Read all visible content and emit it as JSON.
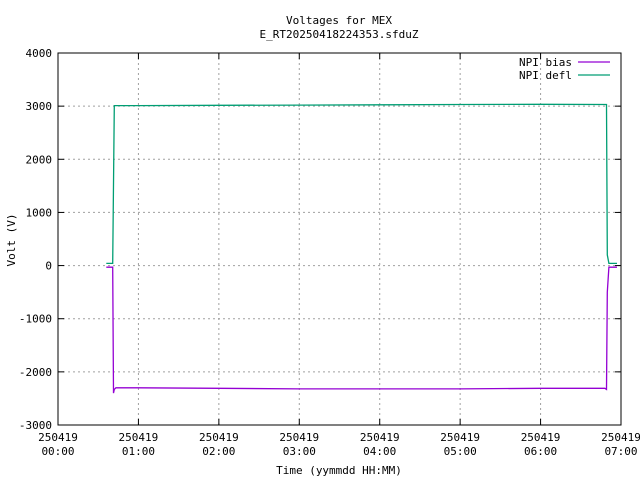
{
  "chart_data": {
    "type": "line",
    "title": "Voltages for MEX",
    "subtitle": "E_RT20250418224353.sfduZ",
    "xlabel": "Time (yymmdd HH:MM)",
    "ylabel": "Volt (V)",
    "xlim": [
      0,
      7
    ],
    "ylim": [
      -3000,
      4000
    ],
    "grid": true,
    "legend_position": "top-right",
    "y_ticks": [
      {
        "value": -3000,
        "label": "-3000"
      },
      {
        "value": -2000,
        "label": "-2000"
      },
      {
        "value": -1000,
        "label": "-1000"
      },
      {
        "value": 0,
        "label": "0"
      },
      {
        "value": 1000,
        "label": "1000"
      },
      {
        "value": 2000,
        "label": "2000"
      },
      {
        "value": 3000,
        "label": "3000"
      },
      {
        "value": 4000,
        "label": "4000"
      }
    ],
    "x_ticks": [
      {
        "value": 0,
        "date": "250419",
        "time": "00:00"
      },
      {
        "value": 1,
        "date": "250419",
        "time": "01:00"
      },
      {
        "value": 2,
        "date": "250419",
        "time": "02:00"
      },
      {
        "value": 3,
        "date": "250419",
        "time": "03:00"
      },
      {
        "value": 4,
        "date": "250419",
        "time": "04:00"
      },
      {
        "value": 5,
        "date": "250419",
        "time": "05:00"
      },
      {
        "value": 6,
        "date": "250419",
        "time": "06:00"
      },
      {
        "value": 7,
        "date": "250419",
        "time": "07:00"
      }
    ],
    "series": [
      {
        "name": "NPI bias",
        "color": "#9400d3",
        "x": [
          0.6,
          0.68,
          0.69,
          0.7,
          0.72,
          1.0,
          2.0,
          3.0,
          4.0,
          5.0,
          6.0,
          6.8,
          6.82,
          6.83,
          6.85,
          6.95
        ],
        "y": [
          -30,
          -30,
          -2400,
          -2330,
          -2300,
          -2300,
          -2310,
          -2320,
          -2320,
          -2320,
          -2310,
          -2310,
          -2330,
          -500,
          -30,
          -30
        ]
      },
      {
        "name": "NPI defl",
        "color": "#009e73",
        "x": [
          0.6,
          0.68,
          0.7,
          1.0,
          2.0,
          3.0,
          4.0,
          5.0,
          6.0,
          6.82,
          6.83,
          6.85,
          6.95
        ],
        "y": [
          40,
          40,
          3010,
          3010,
          3015,
          3020,
          3025,
          3030,
          3035,
          3030,
          200,
          40,
          40
        ]
      }
    ]
  }
}
